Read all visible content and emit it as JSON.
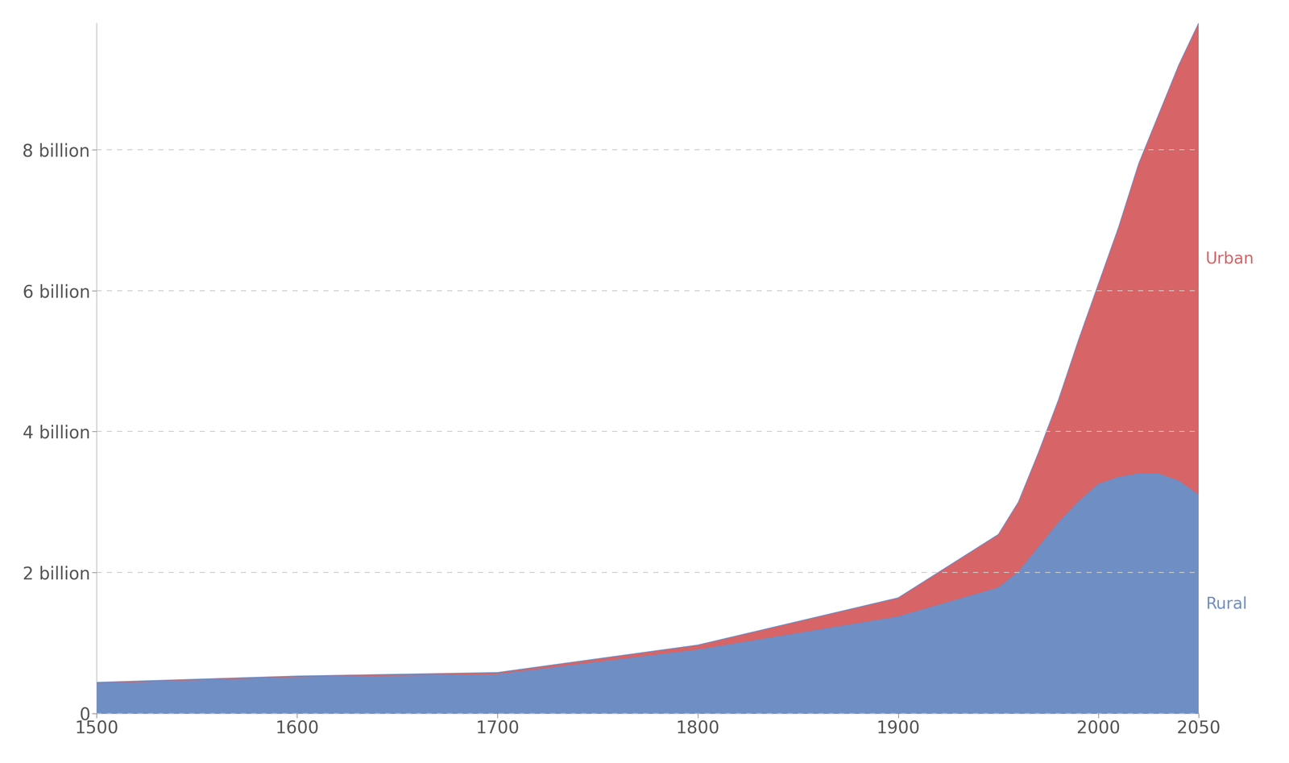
{
  "chart_data": {
    "type": "area",
    "stacked": true,
    "grid": true,
    "x": [
      1500,
      1600,
      1700,
      1800,
      1900,
      1950,
      1960,
      1970,
      1980,
      1990,
      2000,
      2010,
      2020,
      2030,
      2040,
      2050
    ],
    "series": [
      {
        "name": "Rural",
        "color": "#6f8ec4",
        "values": [
          0.42,
          0.51,
          0.55,
          0.9,
          1.37,
          1.78,
          2.0,
          2.35,
          2.7,
          3.0,
          3.25,
          3.35,
          3.4,
          3.4,
          3.3,
          3.1
        ]
      },
      {
        "name": "Urban",
        "color": "#d76466",
        "values": [
          0.02,
          0.02,
          0.03,
          0.07,
          0.27,
          0.76,
          1.0,
          1.35,
          1.75,
          2.3,
          2.85,
          3.55,
          4.4,
          5.1,
          5.9,
          6.7
        ]
      }
    ],
    "xlim": [
      1500,
      2050
    ],
    "xticks": [
      1500,
      1600,
      1700,
      1800,
      1900,
      2000,
      2050
    ],
    "ylim": [
      0,
      9.8
    ],
    "yticks": [
      0,
      {
        "value": 2,
        "label": "2 billion"
      },
      {
        "value": 4,
        "label": "4 billion"
      },
      {
        "value": 6,
        "label": "6 billion"
      },
      {
        "value": 8,
        "label": "8 billion"
      }
    ]
  }
}
